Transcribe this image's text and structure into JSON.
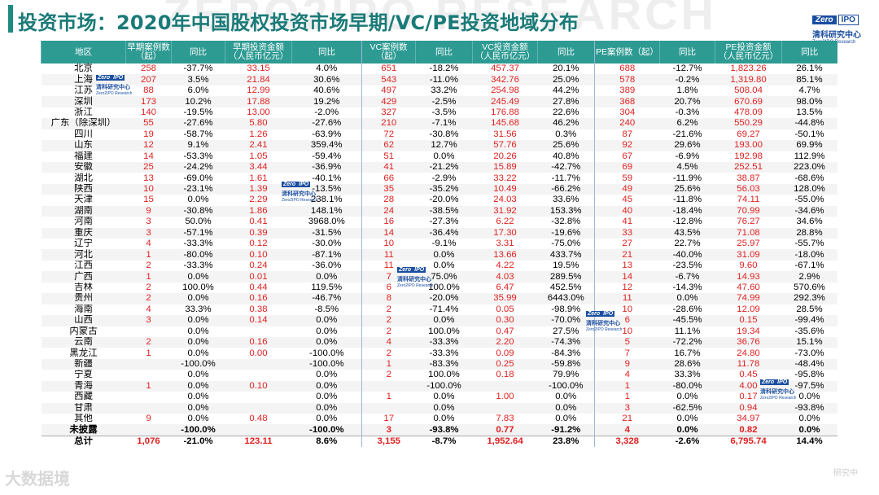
{
  "title": "投资市场：2020年中国股权投资市场早期/VC/PE投资地域分布",
  "watermark": "ZERO2IPO RESEARCH",
  "logo": {
    "zero": "Zero",
    "ipo": "IPO",
    "cn": "清科研究中心",
    "en": "Zero2IPO Research"
  },
  "footer_watermark": "大数据境",
  "footer_watermark2": "研究中",
  "headers": [
    "地区",
    "早期案例数\n（起）",
    "同比",
    "早期投资金额\n（人民币亿元）",
    "同比",
    "VC案例数（起）",
    "同比",
    "VC投资金额\n（人民币亿元）",
    "同比",
    "PE案例数（起）",
    "同比",
    "PE投资金额\n（人民币亿元）",
    "同比"
  ],
  "rows": [
    [
      "北京",
      "258",
      "-37.7%",
      "33.15",
      "4.0%",
      "651",
      "-18.2%",
      "457.37",
      "20.1%",
      "688",
      "-12.7%",
      "1,823.26",
      "26.1%"
    ],
    [
      "上海",
      "207",
      "3.5%",
      "21.84",
      "30.6%",
      "543",
      "-11.0%",
      "342.76",
      "25.0%",
      "578",
      "-0.2%",
      "1,319.80",
      "85.1%"
    ],
    [
      "江苏",
      "88",
      "6.0%",
      "12.99",
      "40.6%",
      "497",
      "33.2%",
      "254.98",
      "44.2%",
      "389",
      "1.8%",
      "508.04",
      "4.7%"
    ],
    [
      "深圳",
      "173",
      "10.2%",
      "17.88",
      "19.2%",
      "429",
      "-2.5%",
      "245.49",
      "27.8%",
      "368",
      "20.7%",
      "670.69",
      "98.0%"
    ],
    [
      "浙江",
      "140",
      "-19.5%",
      "13.00",
      "-2.0%",
      "327",
      "-3.5%",
      "176.88",
      "22.6%",
      "304",
      "-0.3%",
      "478.09",
      "13.5%"
    ],
    [
      "广东（除深圳）",
      "55",
      "-27.6%",
      "5.80",
      "-27.6%",
      "210",
      "-7.1%",
      "145.68",
      "46.2%",
      "240",
      "6.2%",
      "550.29",
      "-44.8%"
    ],
    [
      "四川",
      "19",
      "-58.7%",
      "1.26",
      "-63.9%",
      "72",
      "-30.8%",
      "31.56",
      "0.3%",
      "87",
      "-21.6%",
      "69.27",
      "-50.1%"
    ],
    [
      "山东",
      "12",
      "9.1%",
      "2.41",
      "359.4%",
      "62",
      "12.7%",
      "57.76",
      "25.6%",
      "92",
      "29.6%",
      "193.00",
      "69.9%"
    ],
    [
      "福建",
      "14",
      "-53.3%",
      "1.05",
      "-59.4%",
      "51",
      "0.0%",
      "20.26",
      "40.8%",
      "67",
      "-6.9%",
      "192.98",
      "112.9%"
    ],
    [
      "安徽",
      "25",
      "-24.2%",
      "3.44",
      "-36.9%",
      "41",
      "-21.2%",
      "15.89",
      "-42.7%",
      "69",
      "4.5%",
      "252.51",
      "223.0%"
    ],
    [
      "湖北",
      "13",
      "-69.0%",
      "1.61",
      "-40.1%",
      "66",
      "-2.9%",
      "33.22",
      "-11.7%",
      "59",
      "-11.9%",
      "38.87",
      "-68.6%"
    ],
    [
      "陕西",
      "10",
      "-23.1%",
      "1.39",
      "-13.5%",
      "35",
      "-35.2%",
      "10.49",
      "-66.2%",
      "49",
      "25.6%",
      "56.03",
      "128.0%"
    ],
    [
      "天津",
      "15",
      "0.0%",
      "2.29",
      "238.1%",
      "28",
      "-20.0%",
      "24.03",
      "33.6%",
      "45",
      "-11.8%",
      "74.11",
      "-55.0%"
    ],
    [
      "湖南",
      "9",
      "-30.8%",
      "1.86",
      "148.1%",
      "24",
      "-38.5%",
      "31.92",
      "153.3%",
      "40",
      "-18.4%",
      "70.99",
      "-34.6%"
    ],
    [
      "河南",
      "3",
      "50.0%",
      "0.41",
      "3968.0%",
      "16",
      "-27.3%",
      "6.22",
      "-32.8%",
      "41",
      "-12.8%",
      "76.27",
      "34.6%"
    ],
    [
      "重庆",
      "3",
      "-57.1%",
      "0.39",
      "-31.5%",
      "14",
      "-36.4%",
      "17.30",
      "-19.6%",
      "33",
      "43.5%",
      "71.08",
      "28.8%"
    ],
    [
      "辽宁",
      "4",
      "-33.3%",
      "0.12",
      "-30.0%",
      "10",
      "-9.1%",
      "3.31",
      "-75.0%",
      "27",
      "22.7%",
      "25.97",
      "-55.7%"
    ],
    [
      "河北",
      "1",
      "-80.0%",
      "0.10",
      "-87.1%",
      "11",
      "0.0%",
      "13.66",
      "433.7%",
      "21",
      "-40.0%",
      "31.09",
      "-18.0%"
    ],
    [
      "江西",
      "2",
      "-33.3%",
      "0.24",
      "-36.0%",
      "11",
      "0.0%",
      "4.22",
      "19.5%",
      "13",
      "-23.5%",
      "9.60",
      "-67.1%"
    ],
    [
      "广西",
      "1",
      "0.0%",
      "0.01",
      "0.0%",
      "7",
      "75.0%",
      "4.03",
      "289.5%",
      "14",
      "-6.7%",
      "14.93",
      "2.9%"
    ],
    [
      "吉林",
      "2",
      "100.0%",
      "0.44",
      "119.5%",
      "6",
      "100.0%",
      "6.47",
      "452.5%",
      "12",
      "-14.3%",
      "47.60",
      "570.6%"
    ],
    [
      "贵州",
      "2",
      "0.0%",
      "0.16",
      "-46.7%",
      "8",
      "-20.0%",
      "35.99",
      "6443.0%",
      "11",
      "0.0%",
      "74.99",
      "292.3%"
    ],
    [
      "海南",
      "4",
      "33.3%",
      "0.38",
      "-8.5%",
      "2",
      "-71.4%",
      "0.05",
      "-98.9%",
      "10",
      "-28.6%",
      "12.09",
      "28.5%"
    ],
    [
      "山西",
      "3",
      "0.0%",
      "0.14",
      "0.0%",
      "2",
      "0.0%",
      "0.30",
      "-70.0%",
      "6",
      "-45.5%",
      "0.15",
      "-99.4%"
    ],
    [
      "内蒙古",
      "",
      "0.0%",
      "",
      "0.0%",
      "2",
      "100.0%",
      "0.47",
      "27.5%",
      "10",
      "11.1%",
      "19.34",
      "-35.6%"
    ],
    [
      "云南",
      "2",
      "0.0%",
      "0.16",
      "0.0%",
      "4",
      "-33.3%",
      "2.20",
      "-74.3%",
      "5",
      "-72.2%",
      "36.76",
      "15.1%"
    ],
    [
      "黑龙江",
      "1",
      "0.0%",
      "0.00",
      "-100.0%",
      "2",
      "-33.3%",
      "0.09",
      "-84.3%",
      "7",
      "16.7%",
      "24.80",
      "-73.0%"
    ],
    [
      "新疆",
      "",
      "-100.0%",
      "",
      "-100.0%",
      "1",
      "-83.3%",
      "0.25",
      "-59.8%",
      "9",
      "28.6%",
      "11.78",
      "-48.4%"
    ],
    [
      "宁夏",
      "",
      "0.0%",
      "",
      "0.0%",
      "2",
      "100.0%",
      "0.18",
      "79.9%",
      "4",
      "33.3%",
      "0.45",
      "-95.8%"
    ],
    [
      "青海",
      "1",
      "0.0%",
      "0.10",
      "0.0%",
      "",
      "-100.0%",
      "",
      "-100.0%",
      "1",
      "-80.0%",
      "4.00",
      "-97.5%"
    ],
    [
      "西藏",
      "",
      "0.0%",
      "",
      "0.0%",
      "1",
      "0.0%",
      "1.00",
      "0.0%",
      "1",
      "0.0%",
      "0.17",
      "0.0%"
    ],
    [
      "甘肃",
      "",
      "0.0%",
      "",
      "0.0%",
      "",
      "0.0%",
      "",
      "0.0%",
      "3",
      "-62.5%",
      "0.94",
      "-93.8%"
    ],
    [
      "其他",
      "9",
      "0.0%",
      "0.48",
      "0.0%",
      "17",
      "0.0%",
      "7.83",
      "0.0%",
      "21",
      "0.0%",
      "34.97",
      "0.0%"
    ],
    [
      "未披露",
      "",
      "-100.0%",
      "",
      "-100.0%",
      "3",
      "-93.8%",
      "0.77",
      "-91.2%",
      "4",
      "0.0%",
      "0.82",
      "0.0%"
    ],
    [
      "总计",
      "1,076",
      "-21.0%",
      "123.11",
      "8.6%",
      "3,155",
      "-8.7%",
      "1,952.64",
      "23.8%",
      "3,328",
      "-2.6%",
      "6,795.74",
      "14.4%"
    ]
  ]
}
